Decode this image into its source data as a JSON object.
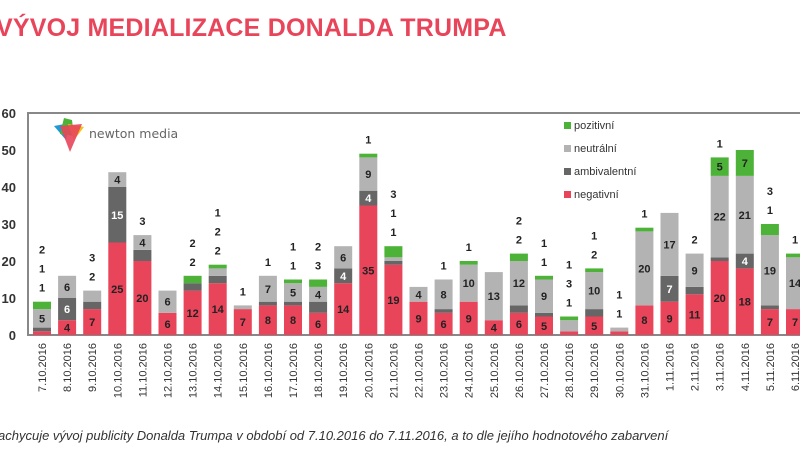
{
  "chart_data": {
    "type": "bar",
    "stacked": true,
    "title": "VÝVOJ MEDIALIZACE DONALDA TRUMPA",
    "caption": "achycuje vývoj publicity Donalda Trumpa v období od 7.10.2016 do 7.11.2016, a to dle jejího hodnotového zabarvení",
    "logo_text": "newton media",
    "ylim": [
      0,
      60
    ],
    "yticks": [
      0,
      10,
      20,
      30,
      40,
      50,
      60
    ],
    "legend_position": "top-right",
    "categories": [
      "7.10.2016",
      "8.10.2016",
      "9.10.2016",
      "10.10.2016",
      "11.10.2016",
      "12.10.2016",
      "13.10.2016",
      "14.10.2016",
      "15.10.2016",
      "16.10.2016",
      "17.10.2016",
      "18.10.2016",
      "19.10.2016",
      "20.10.2016",
      "21.10.2016",
      "22.10.2016",
      "23.10.2016",
      "24.10.2016",
      "25.10.2016",
      "26.10.2016",
      "27.10.2016",
      "28.10.2016",
      "29.10.2016",
      "30.10.2016",
      "31.10.2016",
      "1.11.2016",
      "2.11.2016",
      "3.11.2016",
      "4.11.2016",
      "5.11.2016",
      "6.11.2016"
    ],
    "series": [
      {
        "name": "negativní",
        "color": "#e8455b",
        "values": [
          1,
          4,
          7,
          25,
          20,
          6,
          12,
          14,
          7,
          8,
          8,
          6,
          14,
          35,
          19,
          9,
          6,
          9,
          4,
          6,
          5,
          1,
          5,
          1,
          8,
          9,
          11,
          20,
          18,
          7,
          7
        ]
      },
      {
        "name": "ambivalentní",
        "color": "#666666",
        "values": [
          1,
          6,
          2,
          15,
          3,
          0,
          2,
          2,
          0,
          1,
          1,
          3,
          4,
          4,
          1,
          0,
          1,
          0,
          0,
          2,
          1,
          0,
          2,
          0,
          0,
          7,
          2,
          1,
          4,
          1,
          0
        ]
      },
      {
        "name": "neutrální",
        "color": "#b3b3b3",
        "values": [
          5,
          6,
          3,
          4,
          4,
          6,
          0,
          2,
          1,
          7,
          5,
          4,
          6,
          9,
          1,
          4,
          8,
          10,
          13,
          12,
          9,
          3,
          10,
          1,
          20,
          17,
          9,
          22,
          21,
          19,
          14
        ]
      },
      {
        "name": "pozitivní",
        "color": "#4cb338",
        "values": [
          2,
          0,
          0,
          0,
          0,
          0,
          2,
          1,
          0,
          0,
          1,
          2,
          0,
          1,
          3,
          0,
          0,
          1,
          0,
          2,
          1,
          1,
          1,
          0,
          1,
          0,
          0,
          5,
          7,
          3,
          1
        ]
      }
    ]
  }
}
